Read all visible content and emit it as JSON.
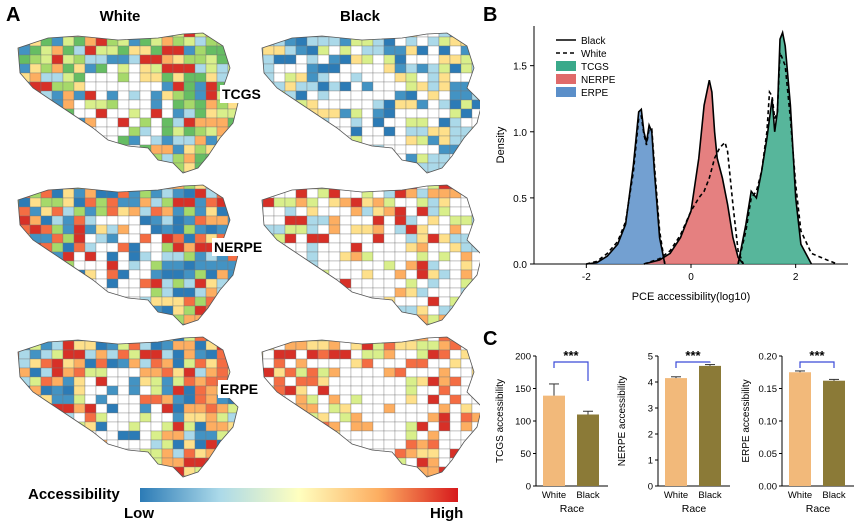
{
  "panels": {
    "a": "A",
    "b": "B",
    "c": "C"
  },
  "maps": {
    "columns": [
      "White",
      "Black"
    ],
    "rows": [
      "TCGS",
      "NERPE",
      "ERPE"
    ],
    "legend": {
      "title": "Accessibility",
      "low": "Low",
      "high": "High",
      "colors": [
        "#2c7bb6",
        "#abd9e9",
        "#ffffbf",
        "#fdae61",
        "#d7191c"
      ]
    }
  },
  "chart_data": [
    {
      "type": "area",
      "xlabel": "PCE accessibility(log10)",
      "ylabel": "Density",
      "xlim": [
        -3,
        3
      ],
      "ylim": [
        0,
        1.8
      ],
      "xticks": [
        "-2",
        "0",
        "2"
      ],
      "yticks": [
        "0.0",
        "0.5",
        "1.0",
        "1.5"
      ],
      "legend": [
        "Black",
        "White",
        "TCGS",
        "NERPE",
        "ERPE"
      ],
      "legend_position": "top-left",
      "colors": {
        "TCGS": "#3aa98a",
        "NERPE": "#e06a6a",
        "ERPE": "#5b8fc9"
      },
      "series": [
        {
          "name": "ERPE",
          "line": "Black",
          "x": [
            -2.0,
            -1.8,
            -1.6,
            -1.4,
            -1.25,
            -1.1,
            -1.0,
            -0.95,
            -0.9,
            -0.85,
            -0.8,
            -0.75,
            -0.7,
            -0.6,
            -0.5
          ],
          "y": [
            0.0,
            0.01,
            0.06,
            0.15,
            0.3,
            0.75,
            1.15,
            1.17,
            1.0,
            0.92,
            1.05,
            1.0,
            0.7,
            0.2,
            0.0
          ]
        },
        {
          "name": "ERPE",
          "line": "White",
          "x": [
            -2.0,
            -1.8,
            -1.6,
            -1.4,
            -1.25,
            -1.1,
            -1.0,
            -0.95,
            -0.9,
            -0.85,
            -0.8,
            -0.75,
            -0.7,
            -0.6,
            -0.5
          ],
          "y": [
            0.0,
            0.02,
            0.08,
            0.17,
            0.32,
            0.7,
            1.1,
            1.12,
            0.98,
            0.9,
            1.02,
            1.02,
            0.75,
            0.25,
            0.0
          ]
        },
        {
          "name": "NERPE",
          "line": "Black",
          "x": [
            -0.9,
            -0.6,
            -0.4,
            -0.2,
            0.0,
            0.15,
            0.25,
            0.35,
            0.4,
            0.45,
            0.5,
            0.6,
            0.7,
            0.8,
            0.9,
            1.0
          ],
          "y": [
            0.0,
            0.03,
            0.08,
            0.2,
            0.4,
            0.8,
            1.2,
            1.39,
            1.3,
            1.0,
            0.8,
            0.65,
            0.45,
            0.2,
            0.05,
            0.0
          ]
        },
        {
          "name": "NERPE",
          "line": "White",
          "x": [
            -0.9,
            -0.6,
            -0.4,
            -0.2,
            0.0,
            0.15,
            0.25,
            0.35,
            0.45,
            0.55,
            0.65,
            0.7,
            0.8,
            0.9,
            1.0
          ],
          "y": [
            0.0,
            0.04,
            0.1,
            0.22,
            0.4,
            0.5,
            0.55,
            0.65,
            0.8,
            0.88,
            0.92,
            0.85,
            0.45,
            0.1,
            0.0
          ]
        },
        {
          "name": "TCGS",
          "line": "Black",
          "x": [
            0.9,
            1.05,
            1.15,
            1.25,
            1.35,
            1.45,
            1.55,
            1.6,
            1.65,
            1.7,
            1.75,
            1.8,
            1.9,
            2.0,
            2.1,
            2.3
          ],
          "y": [
            0.0,
            0.3,
            0.55,
            0.5,
            0.7,
            0.95,
            1.25,
            1.0,
            1.15,
            1.7,
            1.75,
            1.65,
            1.2,
            0.5,
            0.15,
            0.0
          ]
        },
        {
          "name": "TCGS",
          "line": "White",
          "x": [
            0.9,
            1.05,
            1.15,
            1.25,
            1.35,
            1.45,
            1.5,
            1.55,
            1.6,
            1.65,
            1.7,
            1.8,
            1.9,
            2.0,
            2.1,
            2.3,
            2.6,
            2.8
          ],
          "y": [
            0.0,
            0.25,
            0.5,
            0.55,
            0.7,
            1.0,
            1.3,
            1.27,
            1.1,
            1.15,
            1.6,
            1.5,
            1.1,
            0.6,
            0.25,
            0.08,
            0.03,
            0.0
          ]
        }
      ]
    },
    {
      "type": "bar",
      "categories": [
        "White",
        "Black"
      ],
      "values": [
        139,
        110
      ],
      "errors": [
        18,
        5
      ],
      "xlabel": "Race",
      "ylabel": "TCGS accessibility",
      "ylim": [
        0,
        200
      ],
      "yticks": [
        "0",
        "50",
        "100",
        "150",
        "200"
      ],
      "significance": "***",
      "colors": [
        "#f2b97a",
        "#8b7a37"
      ]
    },
    {
      "type": "bar",
      "categories": [
        "White",
        "Black"
      ],
      "values": [
        4.15,
        4.62
      ],
      "errors": [
        0.05,
        0.05
      ],
      "xlabel": "Race",
      "ylabel": "NERPE accessibility",
      "ylim": [
        0,
        5
      ],
      "yticks": [
        "0",
        "1",
        "2",
        "3",
        "4",
        "5"
      ],
      "significance": "***",
      "colors": [
        "#f2b97a",
        "#8b7a37"
      ]
    },
    {
      "type": "bar",
      "categories": [
        "White",
        "Black"
      ],
      "values": [
        0.175,
        0.162
      ],
      "errors": [
        0.002,
        0.002
      ],
      "xlabel": "Race",
      "ylabel": "ERPE accessibility",
      "ylim": [
        0,
        0.2
      ],
      "yticks": [
        "0.00",
        "0.05",
        "0.10",
        "0.15",
        "0.20"
      ],
      "significance": "***",
      "colors": [
        "#f2b97a",
        "#8b7a37"
      ]
    }
  ]
}
